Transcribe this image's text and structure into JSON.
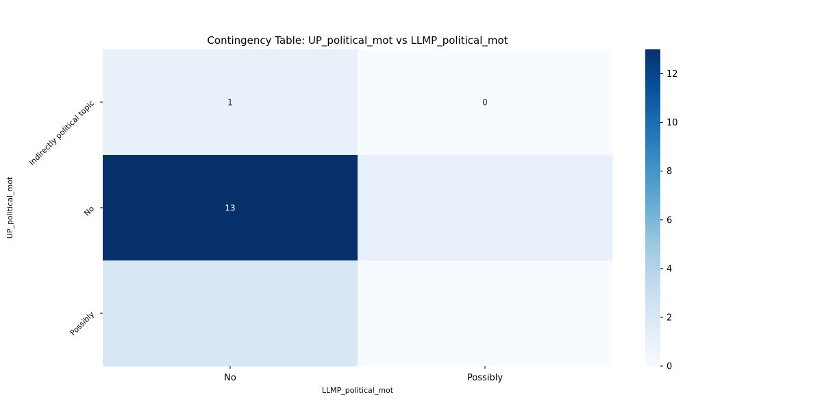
{
  "chart_data": {
    "type": "heatmap",
    "title": "Contingency Table: UP_political_mot vs LLMP_political_mot",
    "xlabel": "LLMP_political_mot",
    "ylabel": "UP_political_mot",
    "x_categories": [
      "No",
      "Possibly"
    ],
    "y_categories": [
      "Indirectly political topic",
      "No",
      "Possibly"
    ],
    "values": [
      [
        1,
        0
      ],
      [
        13,
        1
      ],
      [
        2,
        0
      ]
    ],
    "annotations": [
      [
        "1",
        "0"
      ],
      [
        "13",
        ""
      ],
      [
        "",
        ""
      ]
    ],
    "colormap": "Blues",
    "colorbar": {
      "min": 0,
      "max": 13,
      "ticks": [
        0,
        2,
        4,
        6,
        8,
        10,
        12
      ]
    },
    "colors": [
      "#f7fbff",
      "#deebf7",
      "#c6dbef",
      "#9ecae1",
      "#6baed6",
      "#4292c6",
      "#2171b5",
      "#08519c",
      "#08306b"
    ]
  }
}
